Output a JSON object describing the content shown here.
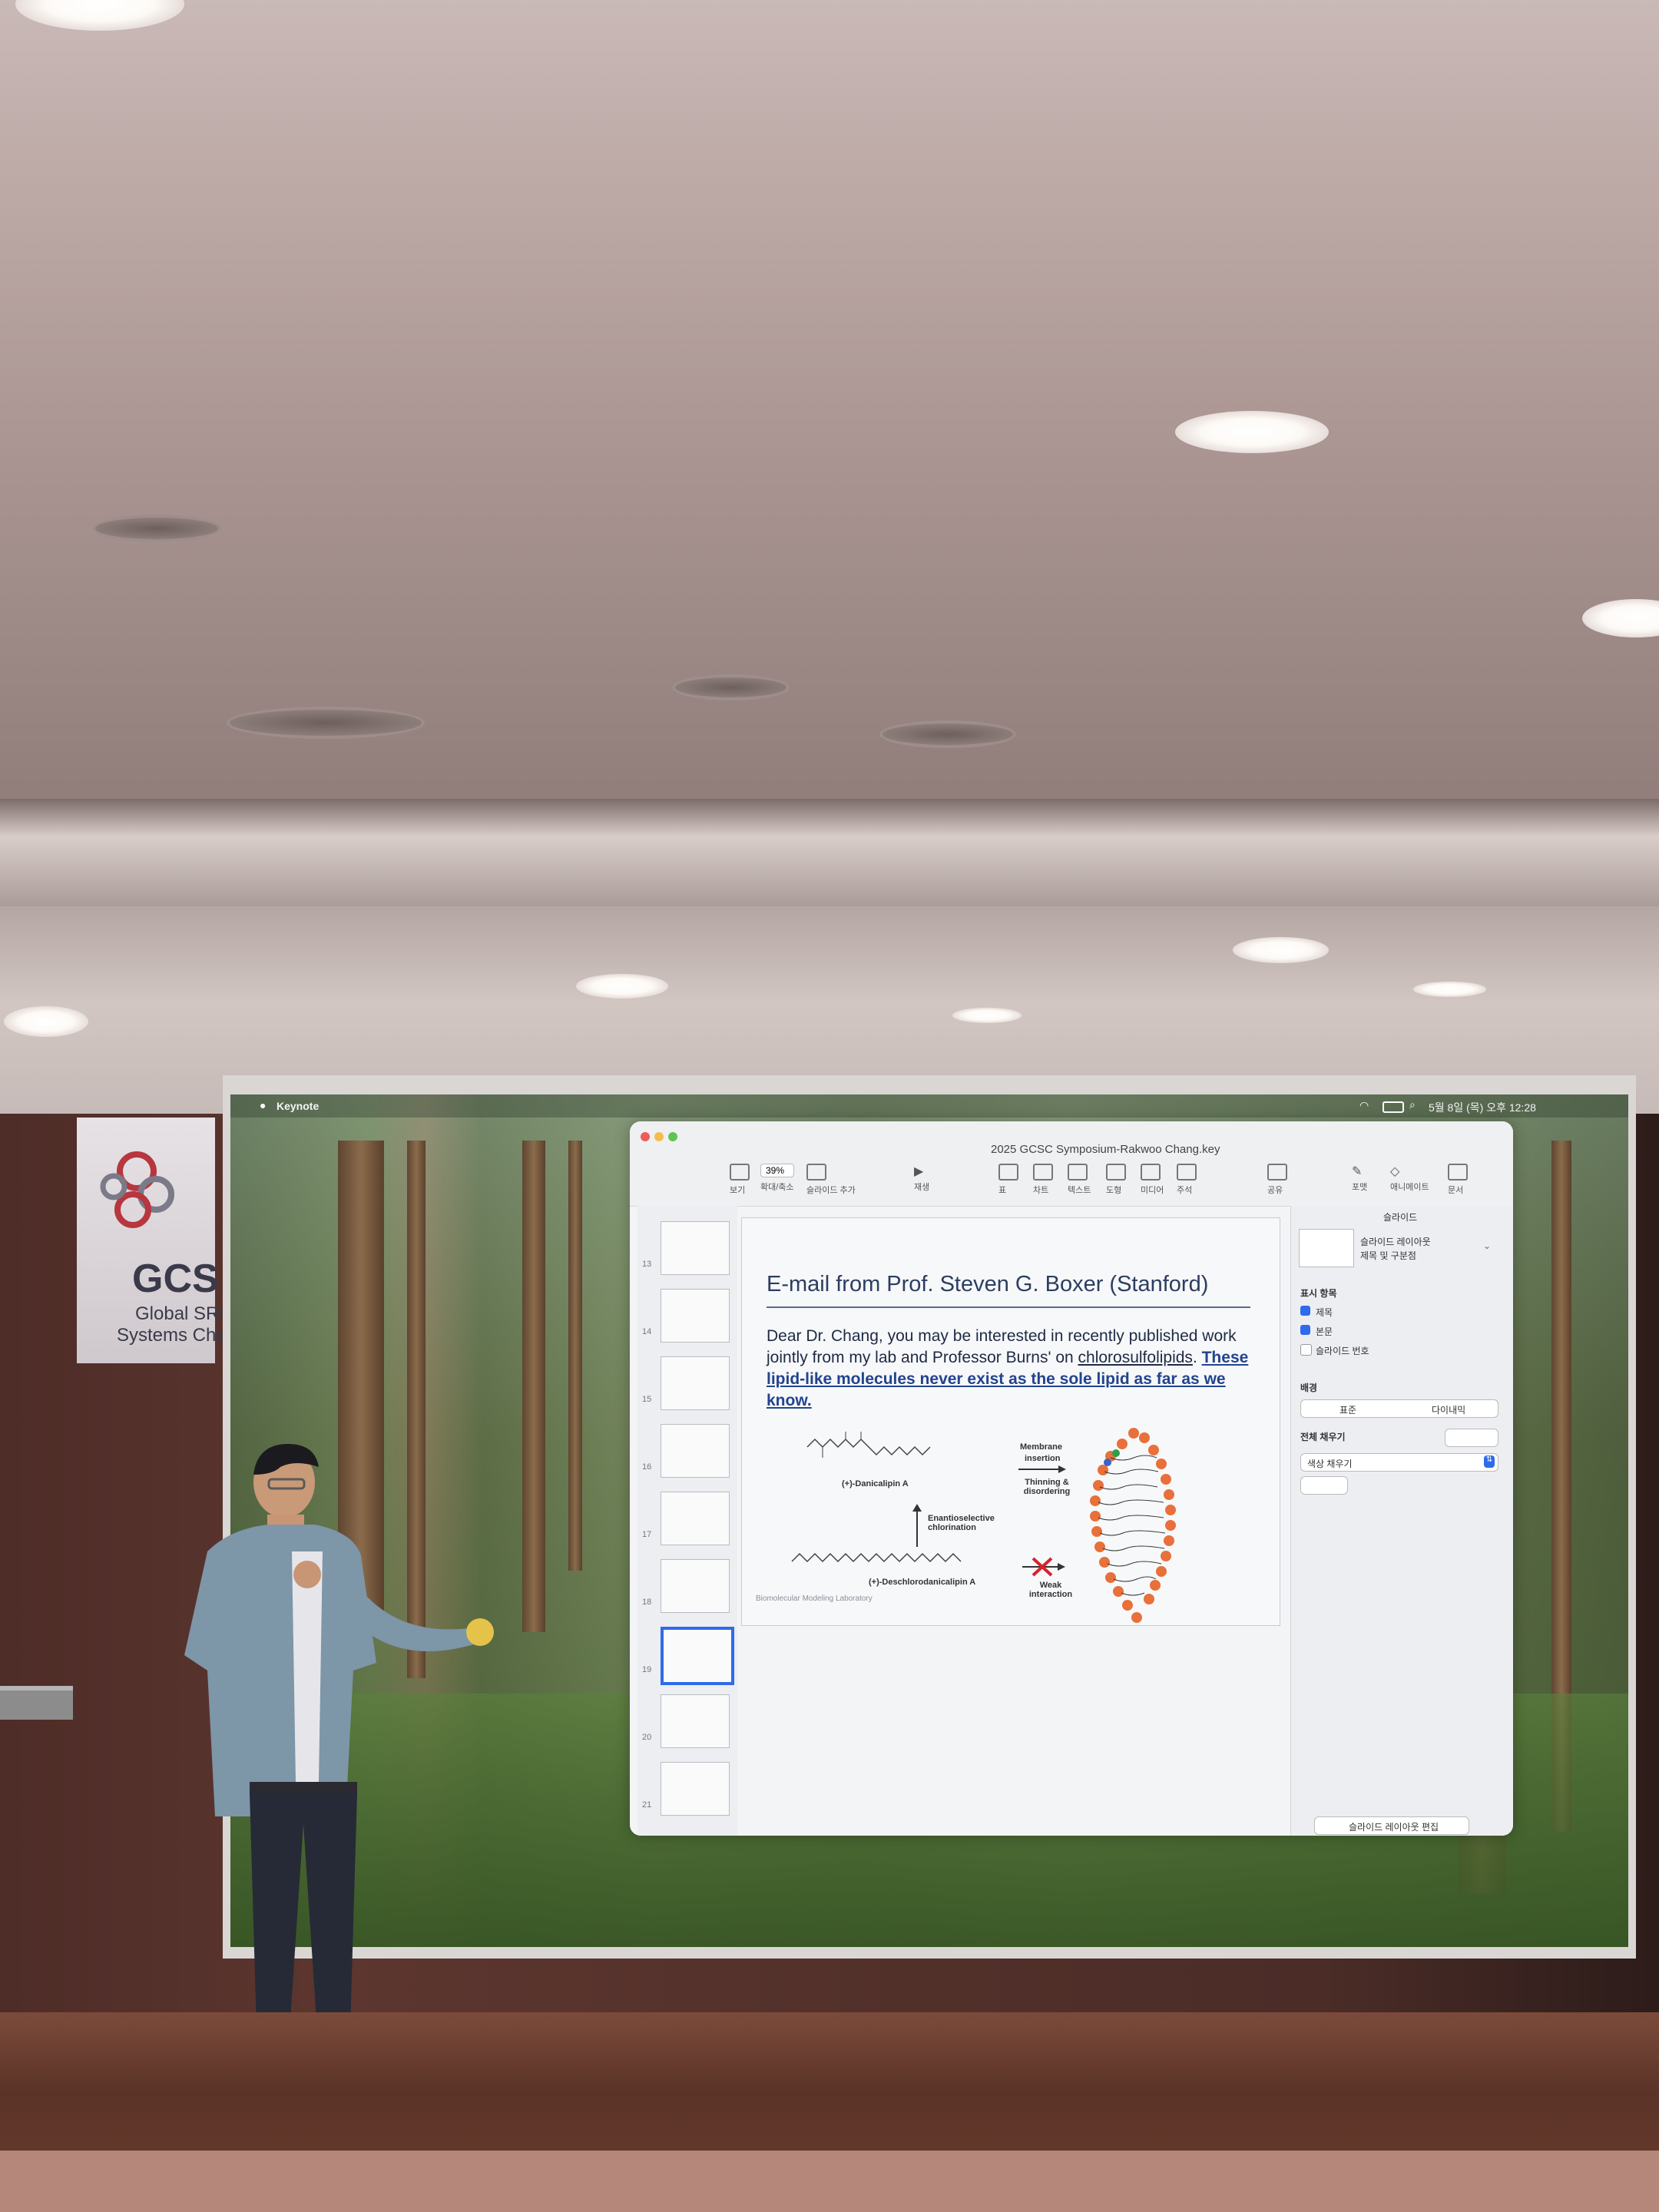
{
  "banner": {
    "title": "GCS",
    "subtitle_line1": "Global SRC",
    "subtitle_line2": "Systems Che"
  },
  "mac_menubar": {
    "app_name": "Keynote",
    "clock": "5월 8일 (목) 오후 12:28"
  },
  "keynote": {
    "window_title": "2025 GCSC Symposium-Rakwoo Chang.key",
    "toolbar": {
      "view_label": "보기",
      "zoom_value": "39%",
      "zoom_label": "확대/축소",
      "add_slide_label": "슬라이드 추가",
      "play_label": "재생",
      "table_label": "표",
      "chart_label": "차트",
      "text_label": "텍스트",
      "shape_label": "도형",
      "media_label": "미디어",
      "comment_label": "주석",
      "share_label": "공유",
      "format_label": "포맷",
      "animate_label": "애니메이트",
      "document_label": "문서"
    },
    "navigator": {
      "slide_numbers": [
        "13",
        "14",
        "15",
        "16",
        "17",
        "18",
        "19",
        "20",
        "21"
      ],
      "selected_index": 6
    },
    "slide": {
      "title": "E-mail from Prof. Steven G. Boxer (Stanford)",
      "body_plain_1": "Dear Dr. Chang,  you may be interested in recently published work jointly from my lab and Professor Burns' on ",
      "body_underline": "chlorosulfolipids",
      "body_plain_2": ".  ",
      "body_bold": "These lipid-like molecules never exist as the sole lipid as far as we know.",
      "molecule_a": "(+)-Danicalipin A",
      "molecule_b": "(+)-Deschlorodanicalipin A",
      "arrow_label": "Enantioselective chlorination",
      "membrane_top_1": "Membrane",
      "membrane_top_2": "insertion",
      "membrane_mid": "Thinning & disordering",
      "weak_interaction": "Weak interaction",
      "footer_lab": "Biomolecular Modeling Laboratory"
    },
    "inspector": {
      "tab_title": "슬라이드",
      "layout_name": "슬라이드 레이아웃",
      "layout_sub": "제목 및 구분점",
      "show_header": "표시 항목",
      "check_title": "제목",
      "check_body": "본문",
      "check_slide_number": "슬라이드 번호",
      "background_header": "배경",
      "seg_standard": "표준",
      "seg_dynamic": "다이내믹",
      "fill_header": "전체 채우기",
      "fill_option": "색상 채우기",
      "edit_layout_button": "슬라이드 레이아웃 편집",
      "check_title_checked": true,
      "check_body_checked": true,
      "check_slide_number_checked": false
    }
  }
}
